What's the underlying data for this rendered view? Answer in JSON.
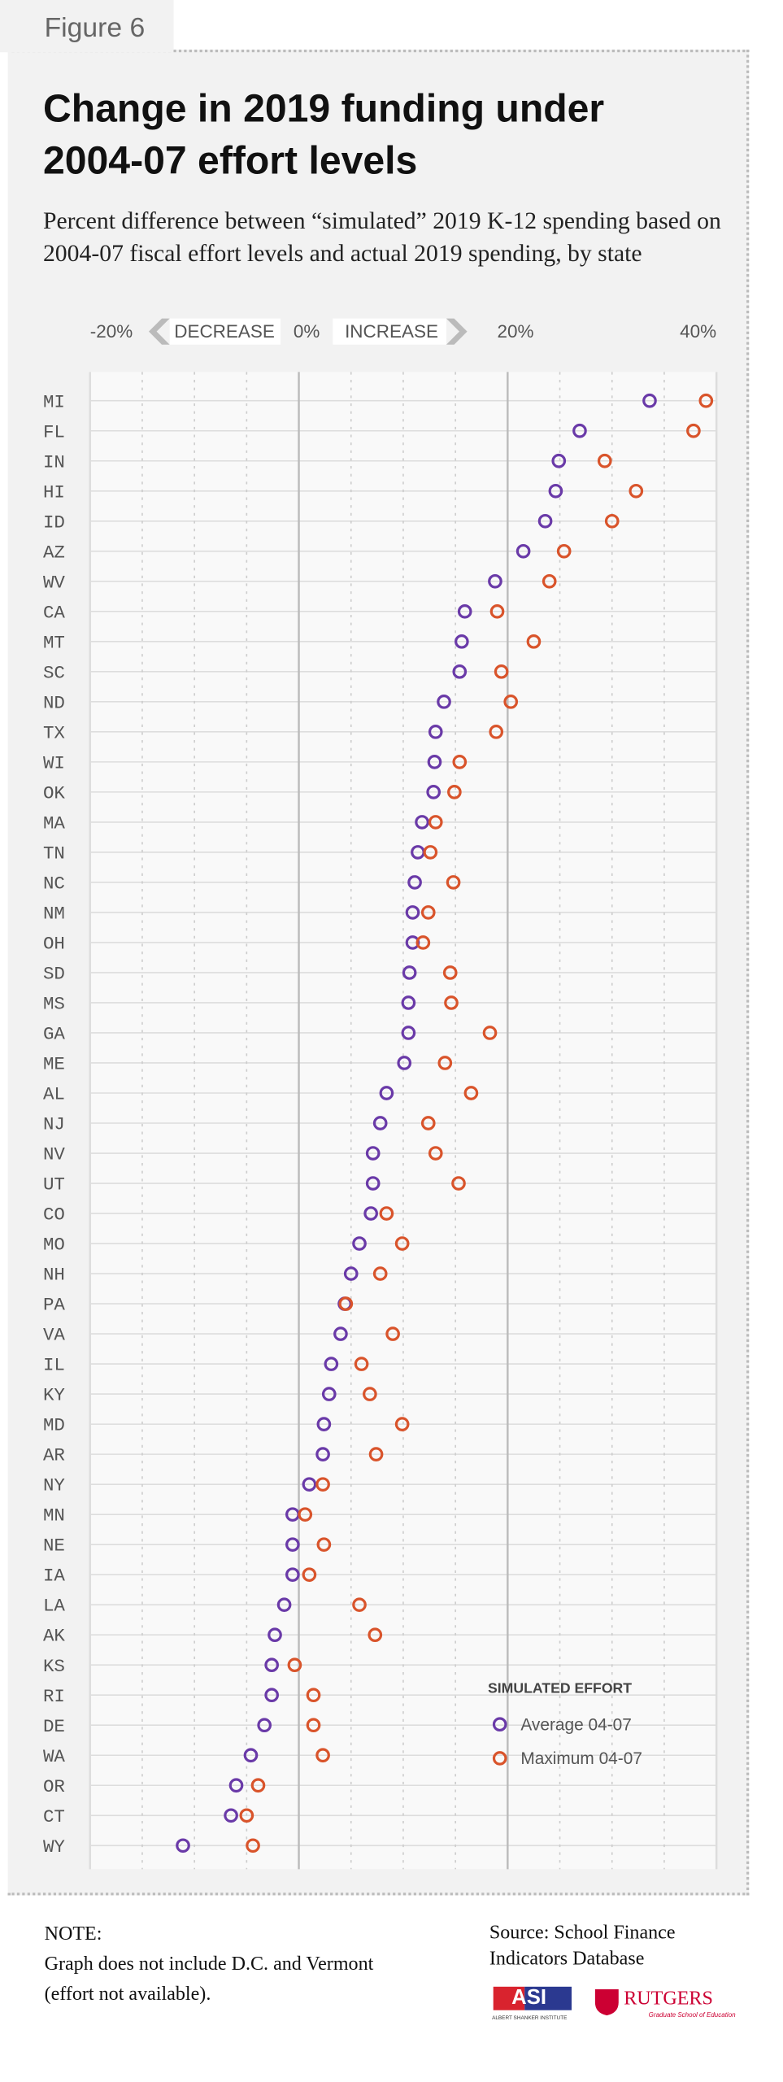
{
  "figure_label": "Figure 6",
  "chart_data": {
    "type": "dot",
    "title": "Change in 2019 funding under 2004-07 effort levels",
    "subtitle": "Percent difference between “simulated” 2019  K-12 spending based on 2004-07 fiscal effort levels and actual 2019 spending, by state",
    "annotations": {
      "decrease": "DECREASE",
      "increase": "INCREASE"
    },
    "categories": [
      "MI",
      "FL",
      "IN",
      "HI",
      "ID",
      "AZ",
      "WV",
      "CA",
      "MT",
      "SC",
      "ND",
      "TX",
      "WI",
      "OK",
      "MA",
      "TN",
      "NC",
      "NM",
      "OH",
      "SD",
      "MS",
      "GA",
      "ME",
      "AL",
      "NJ",
      "NV",
      "UT",
      "CO",
      "MO",
      "NH",
      "PA",
      "VA",
      "IL",
      "KY",
      "MD",
      "AR",
      "NY",
      "MN",
      "NE",
      "IA",
      "LA",
      "AK",
      "KS",
      "RI",
      "DE",
      "WA",
      "OR",
      "CT",
      "WY"
    ],
    "series": [
      {
        "name": "Average 04-07",
        "color": "#6a3aa8",
        "values": [
          33.6,
          26.9,
          24.9,
          24.6,
          23.6,
          21.5,
          18.8,
          15.9,
          15.6,
          15.4,
          13.9,
          13.1,
          13.0,
          12.9,
          11.8,
          11.4,
          11.1,
          10.9,
          10.9,
          10.6,
          10.5,
          10.5,
          10.1,
          8.4,
          7.8,
          7.1,
          7.1,
          6.9,
          5.8,
          5.0,
          4.4,
          4.0,
          3.1,
          2.9,
          2.4,
          2.3,
          1.0,
          -0.6,
          -0.6,
          -0.6,
          -1.4,
          -2.3,
          -2.6,
          -2.6,
          -3.3,
          -4.6,
          -6.0,
          -6.5,
          -11.1
        ]
      },
      {
        "name": "Maximum 04-07",
        "color": "#d9542b",
        "values": [
          39.0,
          37.8,
          29.3,
          32.3,
          30.0,
          25.4,
          24.0,
          19.0,
          22.5,
          19.4,
          20.3,
          18.9,
          15.4,
          14.9,
          13.1,
          12.6,
          14.8,
          12.4,
          11.9,
          14.5,
          14.6,
          18.3,
          14.0,
          16.5,
          12.4,
          13.1,
          15.3,
          8.4,
          9.9,
          7.8,
          4.5,
          9.0,
          6.0,
          6.8,
          9.9,
          7.4,
          2.3,
          0.6,
          2.4,
          1.0,
          5.8,
          7.3,
          -0.4,
          1.4,
          1.4,
          2.3,
          -3.9,
          -5.0,
          -4.4
        ]
      }
    ],
    "xlim": [
      -20,
      40
    ],
    "xticks": [
      {
        "value": -20,
        "label": "-20%"
      },
      {
        "value": 0,
        "label": "0%"
      },
      {
        "value": 20,
        "label": "20%"
      },
      {
        "value": 40,
        "label": "40%"
      }
    ],
    "x_minor_ticks": [
      -15,
      -10,
      -5,
      5,
      10,
      15,
      25,
      30,
      35
    ],
    "legend_title": "SIMULATED EFFORT",
    "legend_position": "lower right"
  },
  "note": {
    "heading": "NOTE:",
    "text": "Graph does not include D.C. and Vermont (effort not available)."
  },
  "source": "Source:  School Finance Indicators Database",
  "logos": {
    "asi": "ASI",
    "asi_name": "ALBERT SHANKER INSTITUTE",
    "rutgers": "RUTGERS",
    "rutgers_sub": "Graduate School of Education"
  }
}
